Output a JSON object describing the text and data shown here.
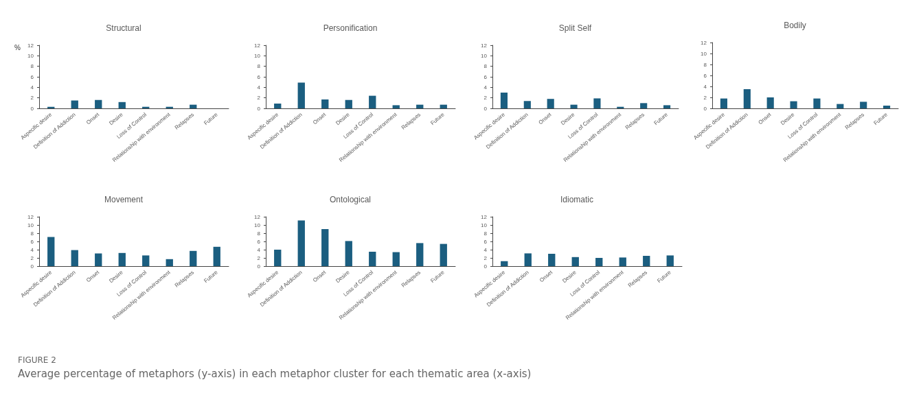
{
  "chart_data": [
    {
      "type": "bar",
      "title": "Structural",
      "ylabel": "%",
      "categories": [
        "Aspecific desire",
        "Definition of Addiction",
        "Onset",
        "Desire",
        "Loss of Control",
        "Relationship with environment",
        "Relapses",
        "Future"
      ],
      "values": [
        0.3,
        1.5,
        1.6,
        1.2,
        0.3,
        0.3,
        0.7,
        0
      ],
      "color": "#1b5e80",
      "ylim": [
        0,
        12
      ],
      "yticks": [
        0,
        2,
        4,
        6,
        8,
        10,
        12
      ],
      "grid": false
    },
    {
      "type": "bar",
      "title": "Personification",
      "categories": [
        "Aspecific desire",
        "Definition of Addiction",
        "Onset",
        "Desire",
        "Loss of Control",
        "Relationship with environment",
        "Relapses",
        "Future"
      ],
      "values": [
        0.9,
        4.9,
        1.7,
        1.6,
        2.4,
        0.6,
        0.7,
        0.7
      ],
      "color": "#1b5e80",
      "ylim": [
        0,
        12
      ],
      "yticks": [
        0,
        2,
        4,
        6,
        8,
        10,
        12
      ],
      "grid": false
    },
    {
      "type": "bar",
      "title": "Split Self",
      "categories": [
        "Aspecific desire",
        "Definition of Addiction",
        "Onset",
        "Desire",
        "Loss of Control",
        "Relationship with environment",
        "Relapses",
        "Future"
      ],
      "values": [
        3.0,
        1.4,
        1.8,
        0.7,
        1.9,
        0.3,
        1.0,
        0.6
      ],
      "color": "#1b5e80",
      "ylim": [
        0,
        12
      ],
      "yticks": [
        0,
        2,
        4,
        6,
        8,
        10,
        12
      ],
      "grid": false
    },
    {
      "type": "bar",
      "title": "Bodily",
      "categories": [
        "Aspecific desire",
        "Definition of Addiction",
        "Onset",
        "Desire",
        "Loss of Control",
        "Relationship with environment",
        "Relapses",
        "Future"
      ],
      "values": [
        1.8,
        3.5,
        2.0,
        1.3,
        1.8,
        0.8,
        1.2,
        0.5
      ],
      "color": "#1b5e80",
      "ylim": [
        0,
        12
      ],
      "yticks": [
        0,
        2,
        4,
        6,
        8,
        10,
        12
      ],
      "grid": false
    },
    {
      "type": "bar",
      "title": "Movement",
      "categories": [
        "Aspecific desire",
        "Definition of Addiction",
        "Onset",
        "Desire",
        "Loss of Control",
        "Relationship with environment",
        "Relapses",
        "Future"
      ],
      "values": [
        7.1,
        3.9,
        3.1,
        3.2,
        2.6,
        1.7,
        3.7,
        4.7
      ],
      "color": "#1b5e80",
      "ylim": [
        0,
        12
      ],
      "yticks": [
        0,
        2,
        4,
        6,
        8,
        10,
        12
      ],
      "grid": false
    },
    {
      "type": "bar",
      "title": "Ontological",
      "categories": [
        "Aspecific desire",
        "Definition of Addiction",
        "Onset",
        "Desire",
        "Loss of Control",
        "Relationship with environment",
        "Relapses",
        "Future"
      ],
      "values": [
        4.0,
        11.1,
        9.0,
        6.1,
        3.5,
        3.4,
        5.6,
        5.4
      ],
      "color": "#1b5e80",
      "ylim": [
        0,
        12
      ],
      "yticks": [
        0,
        2,
        4,
        6,
        8,
        10,
        12
      ],
      "grid": false
    },
    {
      "type": "bar",
      "title": "Idiomatic",
      "categories": [
        "Aspecific desire",
        "Definition of Addiction",
        "Onset",
        "Desire",
        "Loss of Control",
        "Relationship with environment",
        "Relapses",
        "Future"
      ],
      "values": [
        1.2,
        3.1,
        3.0,
        2.2,
        2.0,
        2.1,
        2.5,
        2.6
      ],
      "color": "#1b5e80",
      "ylim": [
        0,
        12
      ],
      "yticks": [
        0,
        2,
        4,
        6,
        8,
        10,
        12
      ],
      "grid": false,
      "annotations": [
        "FIGURE 2",
        "Average percentage of metaphors (y-axis) in each metaphor cluster for each thematic area (x-axis)"
      ]
    }
  ]
}
